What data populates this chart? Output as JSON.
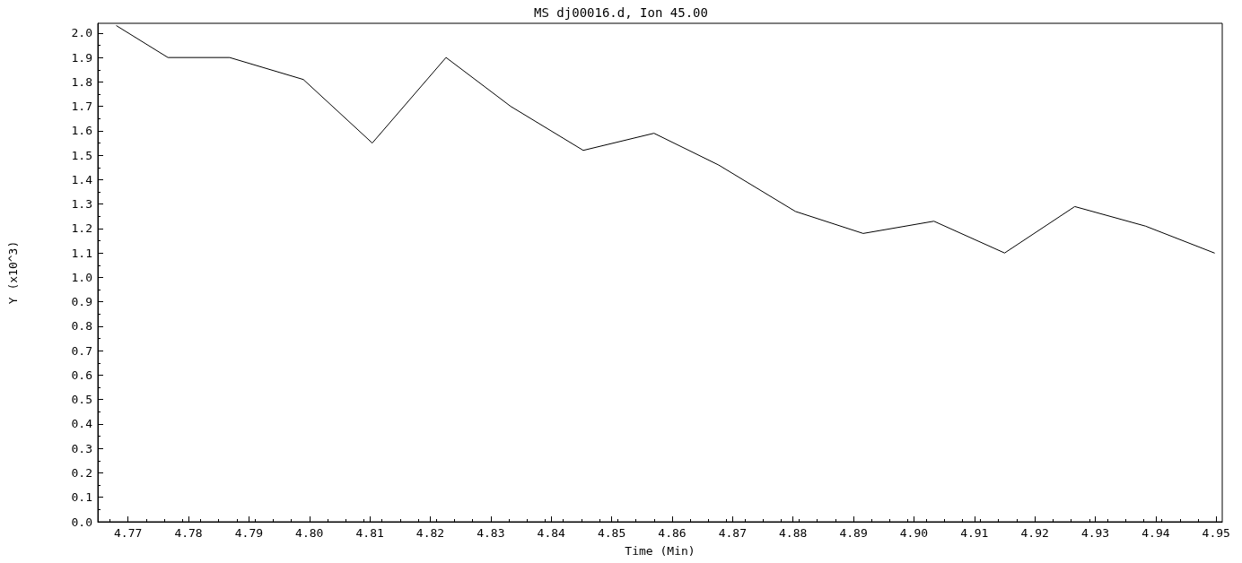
{
  "chart_data": {
    "type": "line",
    "title": "MS dj00016.d, Ion 45.00",
    "xlabel": "Time (Min)",
    "ylabel": "Y (x10^3)",
    "x": [
      4.7681,
      4.7766,
      4.7868,
      4.799,
      4.8104,
      4.8226,
      4.8333,
      4.8453,
      4.857,
      4.8677,
      4.8804,
      4.8916,
      4.9033,
      4.915,
      4.9266,
      4.9383,
      4.9497
    ],
    "series": [
      {
        "color": "#000000",
        "values": [
          2.03,
          1.9,
          1.9,
          1.81,
          1.55,
          1.9,
          1.7,
          1.52,
          1.59,
          1.46,
          1.27,
          1.18,
          1.23,
          1.1,
          1.29,
          1.21,
          1.1
        ]
      }
    ],
    "xlim": [
      4.765,
      4.951
    ],
    "xticks": [
      {
        "value": 4.77,
        "label": "4.77"
      },
      {
        "value": 4.78,
        "label": "4.78"
      },
      {
        "value": 4.79,
        "label": "4.79"
      },
      {
        "value": 4.8,
        "label": "4.80"
      },
      {
        "value": 4.81,
        "label": "4.81"
      },
      {
        "value": 4.82,
        "label": "4.82"
      },
      {
        "value": 4.83,
        "label": "4.83"
      },
      {
        "value": 4.84,
        "label": "4.84"
      },
      {
        "value": 4.85,
        "label": "4.85"
      },
      {
        "value": 4.86,
        "label": "4.86"
      },
      {
        "value": 4.87,
        "label": "4.87"
      },
      {
        "value": 4.88,
        "label": "4.88"
      },
      {
        "value": 4.89,
        "label": "4.89"
      },
      {
        "value": 4.9,
        "label": "4.90"
      },
      {
        "value": 4.91,
        "label": "4.91"
      },
      {
        "value": 4.92,
        "label": "4.92"
      },
      {
        "value": 4.93,
        "label": "4.93"
      },
      {
        "value": 4.94,
        "label": "4.94"
      },
      {
        "value": 4.95,
        "label": "4.95"
      }
    ],
    "ylim": [
      0,
      2.04
    ],
    "yticks": [
      {
        "value": 0,
        "label": "0.0"
      },
      {
        "value": 0.1,
        "label": "0.1"
      },
      {
        "value": 0.2,
        "label": "0.2"
      },
      {
        "value": 0.3,
        "label": "0.3"
      },
      {
        "value": 0.4,
        "label": "0.4"
      },
      {
        "value": 0.5,
        "label": "0.5"
      },
      {
        "value": 0.6,
        "label": "0.6"
      },
      {
        "value": 0.7,
        "label": "0.7"
      },
      {
        "value": 0.8,
        "label": "0.8"
      },
      {
        "value": 0.9,
        "label": "0.9"
      },
      {
        "value": 1,
        "label": "1.0"
      },
      {
        "value": 1.1,
        "label": "1.1"
      },
      {
        "value": 1.2,
        "label": "1.2"
      },
      {
        "value": 1.3,
        "label": "1.3"
      },
      {
        "value": 1.4,
        "label": "1.4"
      },
      {
        "value": 1.5,
        "label": "1.5"
      },
      {
        "value": 1.6,
        "label": "1.6"
      },
      {
        "value": 1.7,
        "label": "1.7"
      },
      {
        "value": 1.8,
        "label": "1.8"
      },
      {
        "value": 1.9,
        "label": "1.9"
      },
      {
        "value": 2,
        "label": "2.0"
      }
    ],
    "grid": false,
    "marker": "none",
    "line_style": "solid"
  }
}
